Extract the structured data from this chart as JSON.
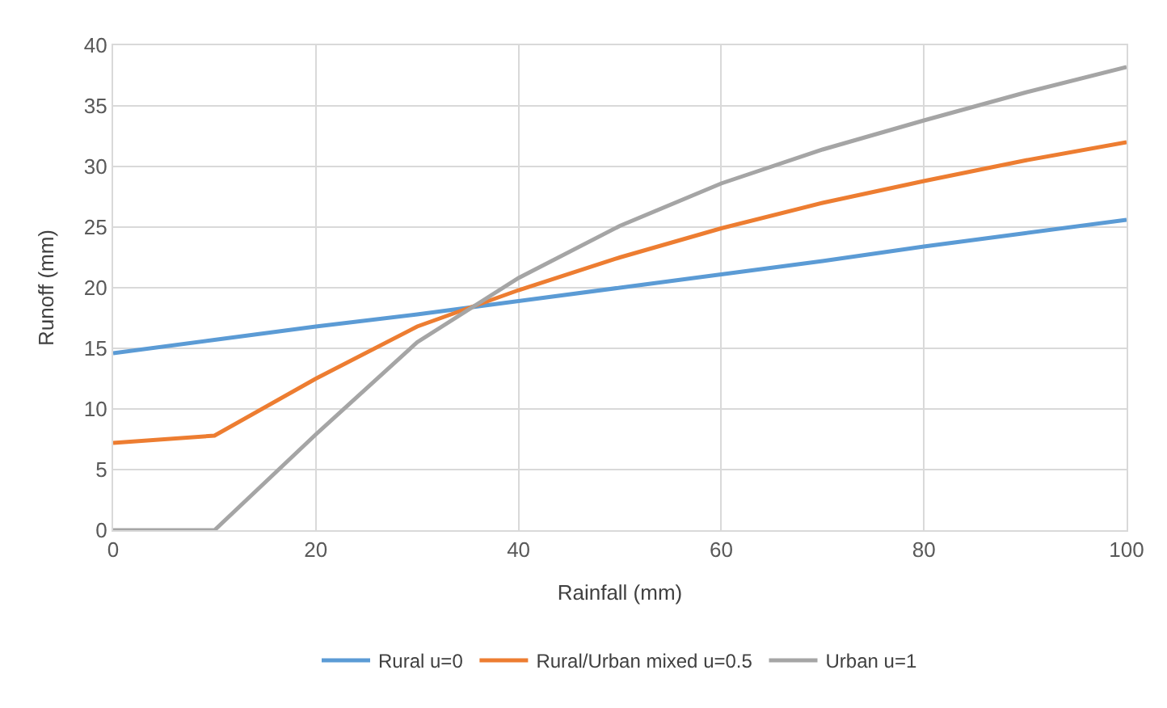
{
  "chart_data": {
    "type": "line",
    "xlabel": "Rainfall (mm)",
    "ylabel": "Runoff (mm)",
    "x": [
      0,
      10,
      20,
      30,
      40,
      50,
      60,
      70,
      80,
      90,
      100
    ],
    "series": [
      {
        "name": "Rural u=0",
        "color": "#5b9bd5",
        "values": [
          14.6,
          15.7,
          16.8,
          17.8,
          18.9,
          20.0,
          21.1,
          22.2,
          23.4,
          24.5,
          25.6
        ]
      },
      {
        "name": "Rural/Urban mixed u=0.5",
        "color": "#ed7d31",
        "values": [
          7.2,
          7.8,
          12.5,
          16.8,
          19.8,
          22.5,
          24.9,
          27.0,
          28.8,
          30.5,
          32.0
        ]
      },
      {
        "name": "Urban u=1",
        "color": "#a5a5a5",
        "values": [
          0,
          0,
          7.9,
          15.5,
          20.8,
          25.1,
          28.6,
          31.4,
          33.8,
          36.1,
          38.2
        ]
      }
    ],
    "xlim": [
      0,
      100
    ],
    "xticks": [
      0,
      20,
      40,
      60,
      80,
      100
    ],
    "ylim": [
      0,
      40
    ],
    "yticks": [
      0,
      5,
      10,
      15,
      20,
      25,
      30,
      35,
      40
    ],
    "grid": true,
    "legend": "bottom",
    "marker": "none",
    "line_style": "solid"
  }
}
